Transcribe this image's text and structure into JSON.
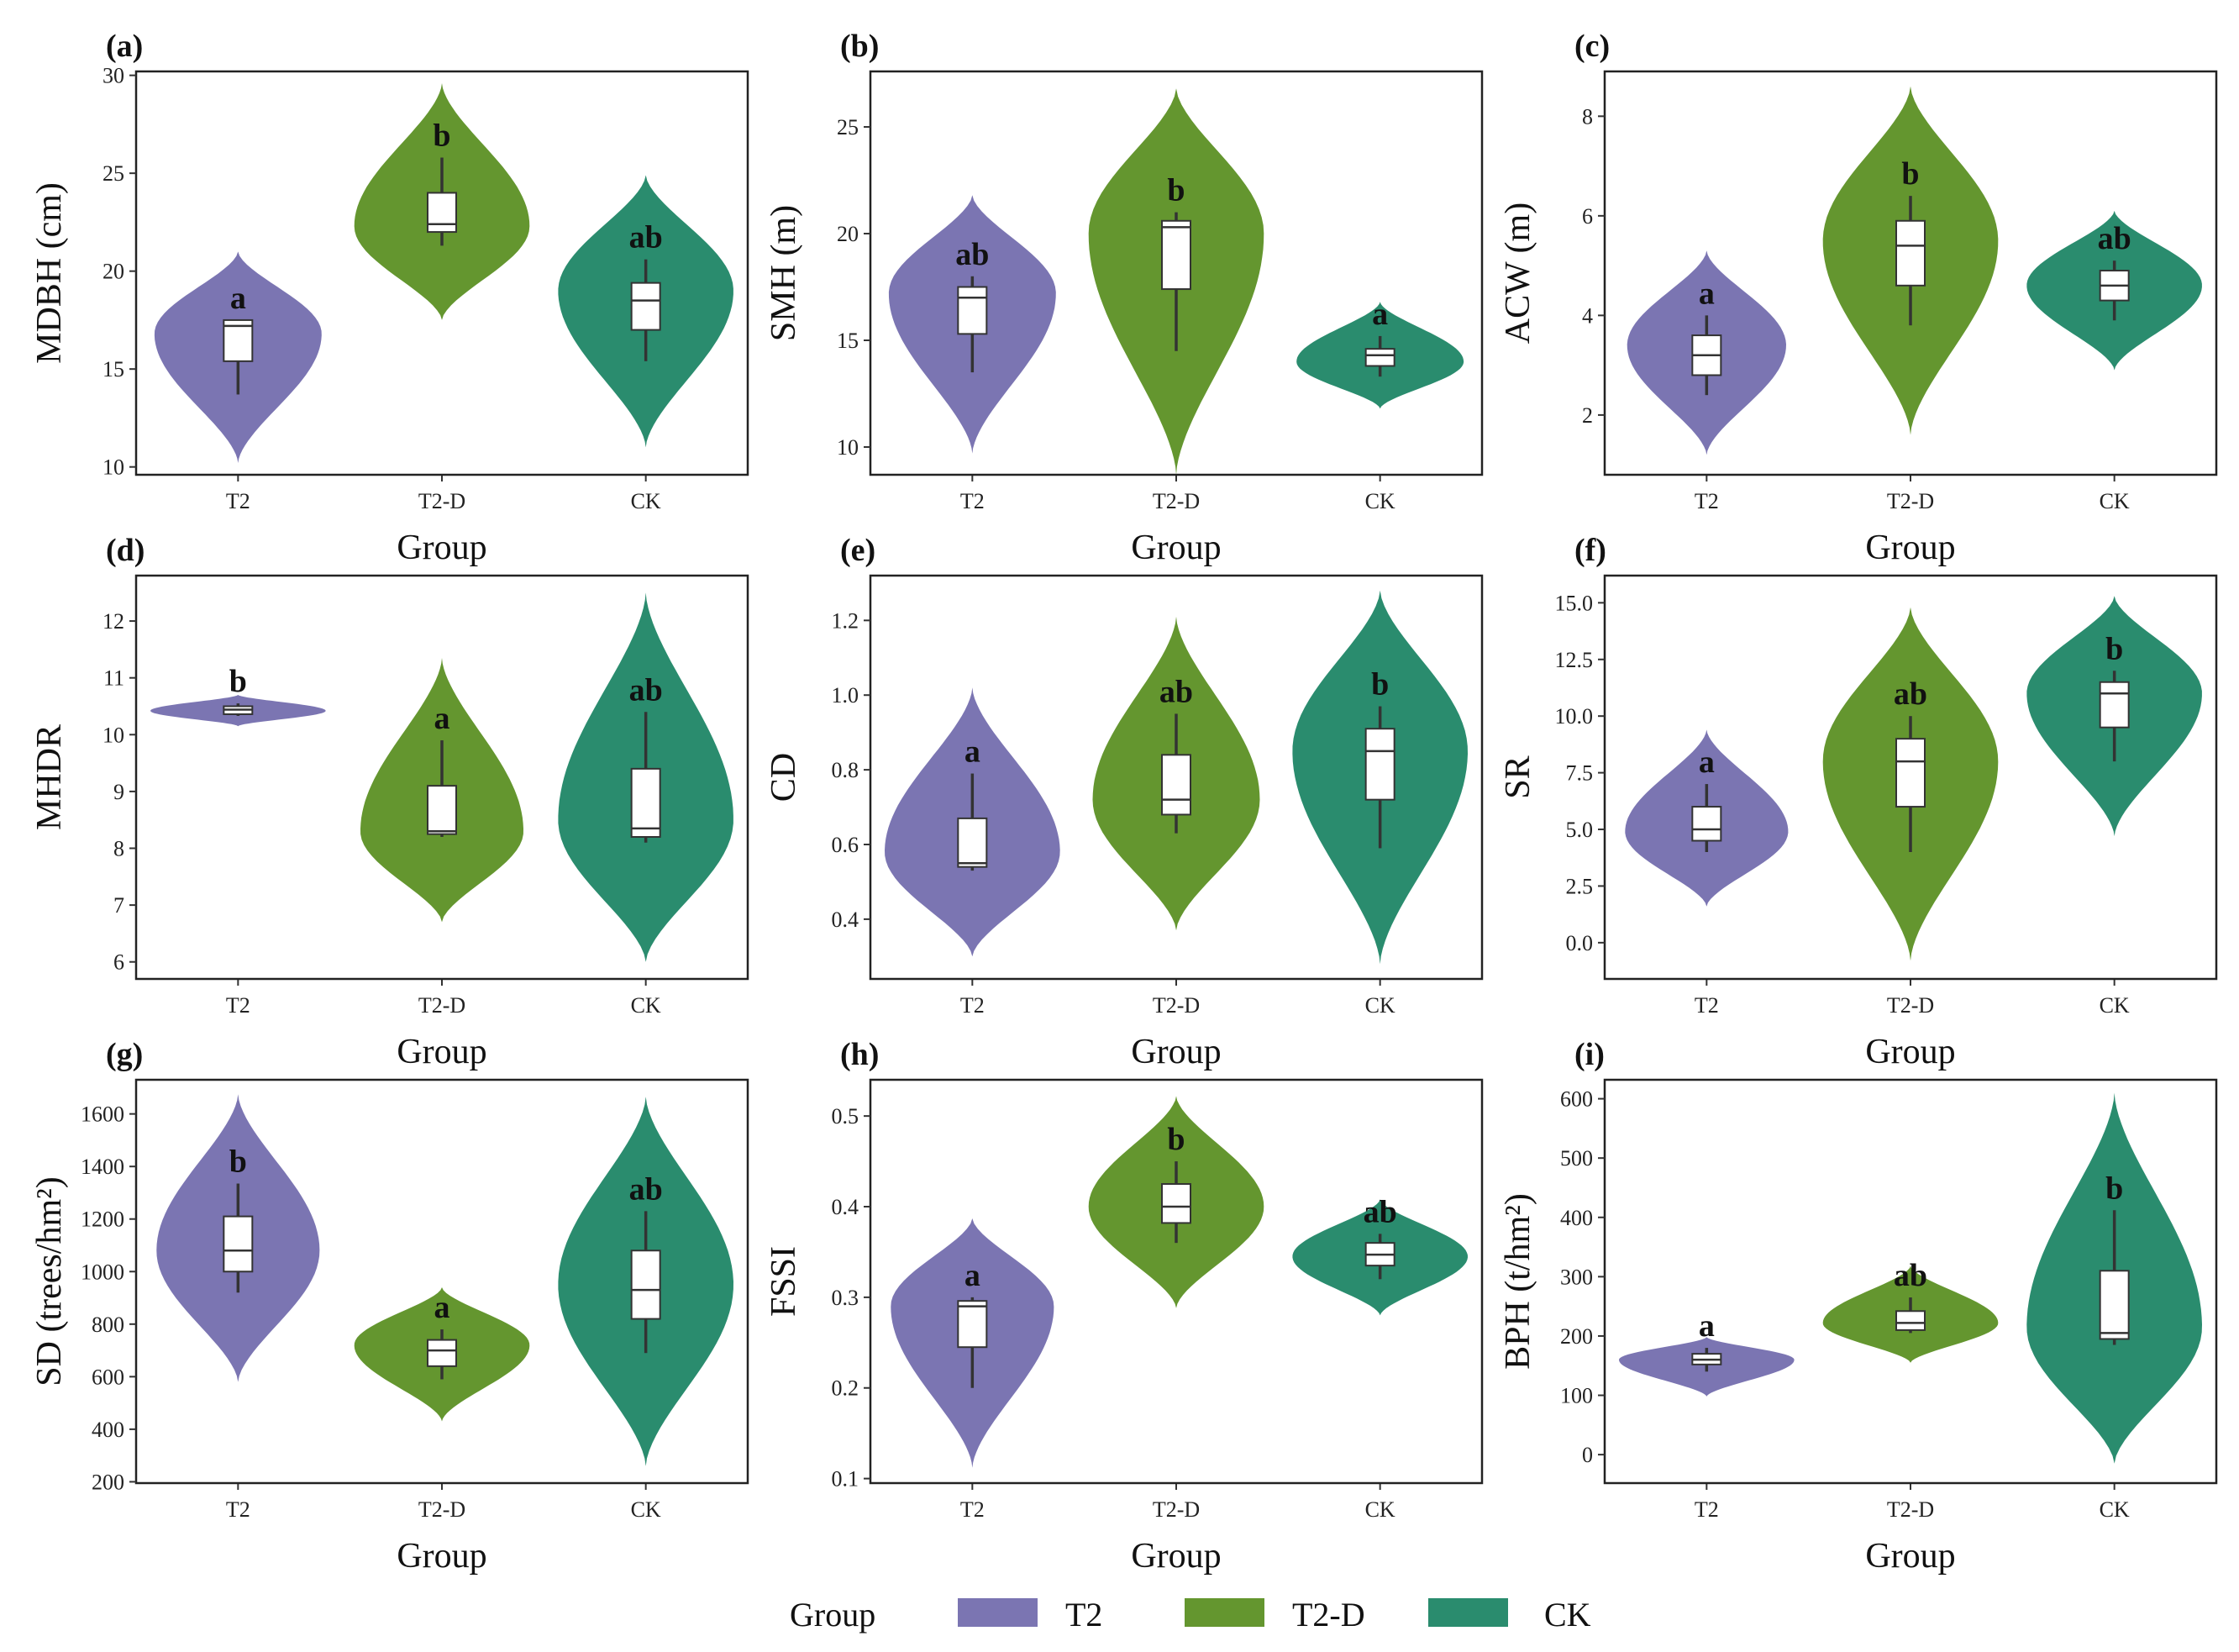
{
  "colors": {
    "T2": "#7b75b2",
    "T2-D": "#64962f",
    "CK": "#2a8c6e"
  },
  "legend": {
    "title": "Group",
    "items": [
      {
        "label": "T2",
        "color": "#7b75b2"
      },
      {
        "label": "T2-D",
        "color": "#64962f"
      },
      {
        "label": "CK",
        "color": "#2a8c6e"
      }
    ]
  },
  "chart_data": [
    {
      "panel": "(a)",
      "type": "violin",
      "xlabel": "Group",
      "ylabel": "MDBH (cm)",
      "ylim": [
        9.6,
        30.2
      ],
      "yticks": [
        "10",
        "15",
        "20",
        "25",
        "30"
      ],
      "ytick_values": [
        10,
        15,
        20,
        25,
        30
      ],
      "categories": [
        "T2",
        "T2-D",
        "CK"
      ],
      "groups": [
        {
          "name": "T2",
          "range": [
            10.2,
            21.0
          ],
          "peak": 16.8,
          "width": 0.82,
          "box": [
            13.7,
            15.4,
            17.2,
            17.5,
            17.5
          ],
          "label": "a"
        },
        {
          "name": "T2-D",
          "range": [
            17.5,
            29.6
          ],
          "peak": 22.3,
          "width": 0.86,
          "box": [
            21.3,
            22.0,
            22.4,
            24.0,
            25.8
          ],
          "label": "b"
        },
        {
          "name": "CK",
          "range": [
            11.0,
            24.9
          ],
          "peak": 19.0,
          "width": 0.86,
          "box": [
            15.4,
            17.0,
            18.5,
            19.4,
            20.6
          ],
          "label": "ab"
        }
      ]
    },
    {
      "panel": "(b)",
      "type": "violin",
      "xlabel": "Group",
      "ylabel": "SMH (m)",
      "ylim": [
        8.7,
        27.6
      ],
      "yticks": [
        "10",
        "15",
        "20",
        "25"
      ],
      "ytick_values": [
        10,
        15,
        20,
        25
      ],
      "categories": [
        "T2",
        "T2-D",
        "CK"
      ],
      "groups": [
        {
          "name": "T2",
          "range": [
            9.7,
            21.8
          ],
          "peak": 17.2,
          "width": 0.82,
          "box": [
            13.5,
            15.3,
            17.0,
            17.5,
            18.0
          ],
          "label": "ab"
        },
        {
          "name": "T2-D",
          "range": [
            8.7,
            26.8
          ],
          "peak": 20.0,
          "width": 0.86,
          "box": [
            14.5,
            17.4,
            20.3,
            20.6,
            21.0
          ],
          "label": "b"
        },
        {
          "name": "CK",
          "range": [
            11.8,
            16.8
          ],
          "peak": 14.0,
          "width": 0.82,
          "box": [
            13.3,
            13.8,
            14.3,
            14.6,
            15.2
          ],
          "label": "a"
        }
      ]
    },
    {
      "panel": "(c)",
      "type": "violin",
      "xlabel": "Group",
      "ylabel": "ACW (m)",
      "ylim": [
        0.8,
        8.9
      ],
      "yticks": [
        "2",
        "4",
        "6",
        "8"
      ],
      "ytick_values": [
        2,
        4,
        6,
        8
      ],
      "categories": [
        "T2",
        "T2-D",
        "CK"
      ],
      "groups": [
        {
          "name": "T2",
          "range": [
            1.2,
            5.3
          ],
          "peak": 3.4,
          "width": 0.78,
          "box": [
            2.4,
            2.8,
            3.2,
            3.6,
            4.0
          ],
          "label": "a"
        },
        {
          "name": "T2-D",
          "range": [
            1.6,
            8.6
          ],
          "peak": 5.5,
          "width": 0.86,
          "box": [
            3.8,
            4.6,
            5.4,
            5.9,
            6.4
          ],
          "label": "b"
        },
        {
          "name": "CK",
          "range": [
            2.9,
            6.1
          ],
          "peak": 4.6,
          "width": 0.86,
          "box": [
            3.9,
            4.3,
            4.6,
            4.9,
            5.1
          ],
          "label": "ab"
        }
      ]
    },
    {
      "panel": "(d)",
      "type": "violin",
      "xlabel": "Group",
      "ylabel": "MHDR",
      "ylim": [
        5.7,
        12.8
      ],
      "yticks": [
        "6",
        "7",
        "8",
        "9",
        "10",
        "11",
        "12"
      ],
      "ytick_values": [
        6,
        7,
        8,
        9,
        10,
        11,
        12
      ],
      "categories": [
        "T2",
        "T2-D",
        "CK"
      ],
      "groups": [
        {
          "name": "T2",
          "range": [
            10.15,
            10.7
          ],
          "peak": 10.42,
          "width": 0.86,
          "box": [
            10.33,
            10.36,
            10.44,
            10.5,
            10.55
          ],
          "label": "b"
        },
        {
          "name": "T2-D",
          "range": [
            6.7,
            11.35
          ],
          "peak": 8.3,
          "width": 0.8,
          "box": [
            8.2,
            8.25,
            8.3,
            9.1,
            9.9
          ],
          "label": "a"
        },
        {
          "name": "CK",
          "range": [
            6.0,
            12.5
          ],
          "peak": 8.5,
          "width": 0.86,
          "box": [
            8.1,
            8.2,
            8.35,
            9.4,
            10.4
          ],
          "label": "ab"
        }
      ]
    },
    {
      "panel": "(e)",
      "type": "violin",
      "xlabel": "Group",
      "ylabel": "CD",
      "ylim": [
        0.24,
        1.32
      ],
      "yticks": [
        "0.4",
        "0.6",
        "0.8",
        "1.0",
        "1.2"
      ],
      "ytick_values": [
        0.4,
        0.6,
        0.8,
        1.0,
        1.2
      ],
      "categories": [
        "T2",
        "T2-D",
        "CK"
      ],
      "groups": [
        {
          "name": "T2",
          "range": [
            0.3,
            1.02
          ],
          "peak": 0.58,
          "width": 0.86,
          "box": [
            0.53,
            0.54,
            0.55,
            0.67,
            0.79
          ],
          "label": "a"
        },
        {
          "name": "T2-D",
          "range": [
            0.37,
            1.21
          ],
          "peak": 0.72,
          "width": 0.82,
          "box": [
            0.63,
            0.68,
            0.72,
            0.84,
            0.95
          ],
          "label": "ab"
        },
        {
          "name": "CK",
          "range": [
            0.28,
            1.28
          ],
          "peak": 0.85,
          "width": 0.86,
          "box": [
            0.59,
            0.72,
            0.85,
            0.91,
            0.97
          ],
          "label": "b"
        }
      ]
    },
    {
      "panel": "(f)",
      "type": "violin",
      "xlabel": "Group",
      "ylabel": "SR",
      "ylim": [
        -1.6,
        16.2
      ],
      "yticks": [
        "0.0",
        "2.5",
        "5.0",
        "7.5",
        "10.0",
        "12.5",
        "15.0"
      ],
      "ytick_values": [
        0,
        2.5,
        5,
        7.5,
        10,
        12.5,
        15
      ],
      "categories": [
        "T2",
        "T2-D",
        "CK"
      ],
      "groups": [
        {
          "name": "T2",
          "range": [
            1.6,
            9.4
          ],
          "peak": 4.9,
          "width": 0.8,
          "box": [
            4.0,
            4.5,
            5.0,
            6.0,
            7.0
          ],
          "label": "a"
        },
        {
          "name": "T2-D",
          "range": [
            -0.8,
            14.8
          ],
          "peak": 8.0,
          "width": 0.86,
          "box": [
            4.0,
            6.0,
            8.0,
            9.0,
            10.0
          ],
          "label": "ab"
        },
        {
          "name": "CK",
          "range": [
            4.7,
            15.3
          ],
          "peak": 11.0,
          "width": 0.86,
          "box": [
            8.0,
            9.5,
            11.0,
            11.5,
            12.0
          ],
          "label": "b"
        }
      ]
    },
    {
      "panel": "(g)",
      "type": "violin",
      "xlabel": "Group",
      "ylabel": "SD (trees/hm²)",
      "ylim": [
        195,
        1730
      ],
      "yticks": [
        "200",
        "400",
        "600",
        "800",
        "1000",
        "1200",
        "1400",
        "1600"
      ],
      "ytick_values": [
        200,
        400,
        600,
        800,
        1000,
        1200,
        1400,
        1600
      ],
      "categories": [
        "T2",
        "T2-D",
        "CK"
      ],
      "groups": [
        {
          "name": "T2",
          "range": [
            580,
            1675
          ],
          "peak": 1080,
          "width": 0.8,
          "box": [
            920,
            1000,
            1080,
            1210,
            1335
          ],
          "label": "b"
        },
        {
          "name": "T2-D",
          "range": [
            430,
            940
          ],
          "peak": 720,
          "width": 0.86,
          "box": [
            590,
            640,
            700,
            740,
            780
          ],
          "label": "a"
        },
        {
          "name": "CK",
          "range": [
            260,
            1665
          ],
          "peak": 950,
          "width": 0.86,
          "box": [
            690,
            820,
            930,
            1080,
            1230
          ],
          "label": "ab"
        }
      ]
    },
    {
      "panel": "(h)",
      "type": "violin",
      "xlabel": "Group",
      "ylabel": "FSSI",
      "ylim": [
        0.095,
        0.54
      ],
      "yticks": [
        "0.1",
        "0.2",
        "0.3",
        "0.4",
        "0.5"
      ],
      "ytick_values": [
        0.1,
        0.2,
        0.3,
        0.4,
        0.5
      ],
      "categories": [
        "T2",
        "T2-D",
        "CK"
      ],
      "groups": [
        {
          "name": "T2",
          "range": [
            0.112,
            0.387
          ],
          "peak": 0.29,
          "width": 0.8,
          "box": [
            0.2,
            0.245,
            0.29,
            0.296,
            0.3
          ],
          "label": "a"
        },
        {
          "name": "T2-D",
          "range": [
            0.288,
            0.522
          ],
          "peak": 0.4,
          "width": 0.86,
          "box": [
            0.36,
            0.382,
            0.4,
            0.425,
            0.45
          ],
          "label": "b"
        },
        {
          "name": "CK",
          "range": [
            0.28,
            0.408
          ],
          "peak": 0.345,
          "width": 0.86,
          "box": [
            0.32,
            0.335,
            0.347,
            0.36,
            0.37
          ],
          "label": "ab"
        }
      ]
    },
    {
      "panel": "(i)",
      "type": "violin",
      "xlabel": "Group",
      "ylabel": "BPH (t/hm²)",
      "ylim": [
        -48,
        632
      ],
      "yticks": [
        "0",
        "100",
        "200",
        "300",
        "400",
        "500",
        "600"
      ],
      "ytick_values": [
        0,
        100,
        200,
        300,
        400,
        500,
        600
      ],
      "categories": [
        "T2",
        "T2-D",
        "CK"
      ],
      "groups": [
        {
          "name": "T2",
          "range": [
            98,
            198
          ],
          "peak": 160,
          "width": 0.86,
          "box": [
            140,
            152,
            160,
            170,
            180
          ],
          "label": "a"
        },
        {
          "name": "T2-D",
          "range": [
            155,
            318
          ],
          "peak": 222,
          "width": 0.86,
          "box": [
            205,
            210,
            222,
            242,
            265
          ],
          "label": "ab"
        },
        {
          "name": "CK",
          "range": [
            -15,
            610
          ],
          "peak": 215,
          "width": 0.86,
          "box": [
            185,
            195,
            205,
            310,
            412
          ],
          "label": "b"
        }
      ]
    }
  ]
}
